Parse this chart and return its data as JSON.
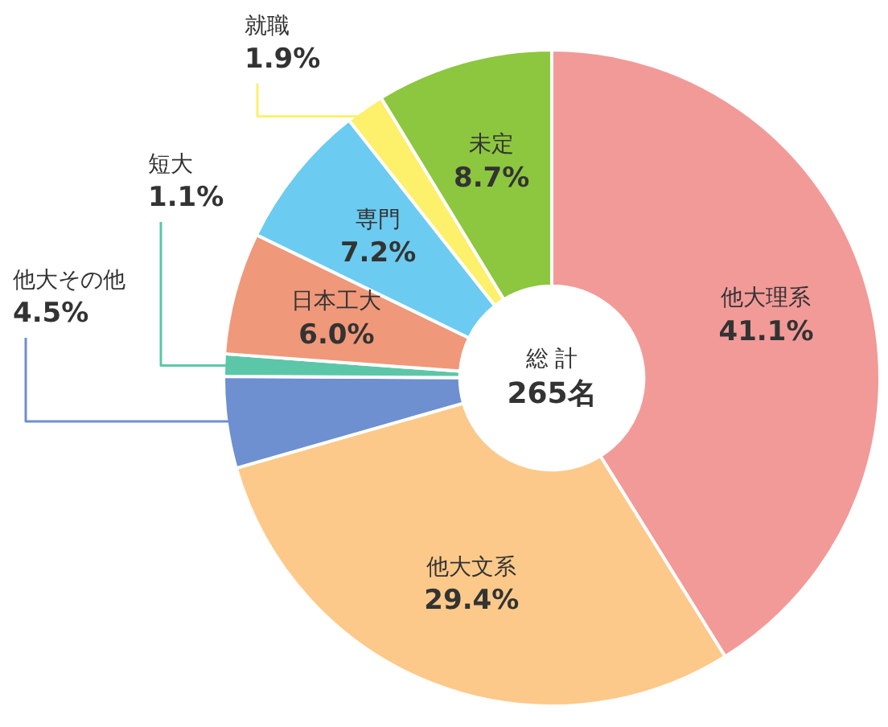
{
  "chart_data": {
    "type": "donut",
    "categories": [
      "他大理系",
      "他大文系",
      "他大その他",
      "短大",
      "日本工大",
      "専門",
      "就職",
      "未定"
    ],
    "values": [
      41.1,
      29.4,
      4.5,
      1.1,
      6.0,
      7.2,
      1.9,
      8.7
    ],
    "value_labels": [
      "41.1%",
      "29.4%",
      "4.5%",
      "1.1%",
      "6.0%",
      "7.2%",
      "1.9%",
      "8.7%"
    ],
    "colors": [
      "#f29a98",
      "#fdc98a",
      "#6e8fd0",
      "#5cc7a8",
      "#f0987a",
      "#6ccbf0",
      "#fdf06a",
      "#8dc63f"
    ],
    "annotations": [
      "総 計",
      "265名"
    ],
    "legend": false
  }
}
